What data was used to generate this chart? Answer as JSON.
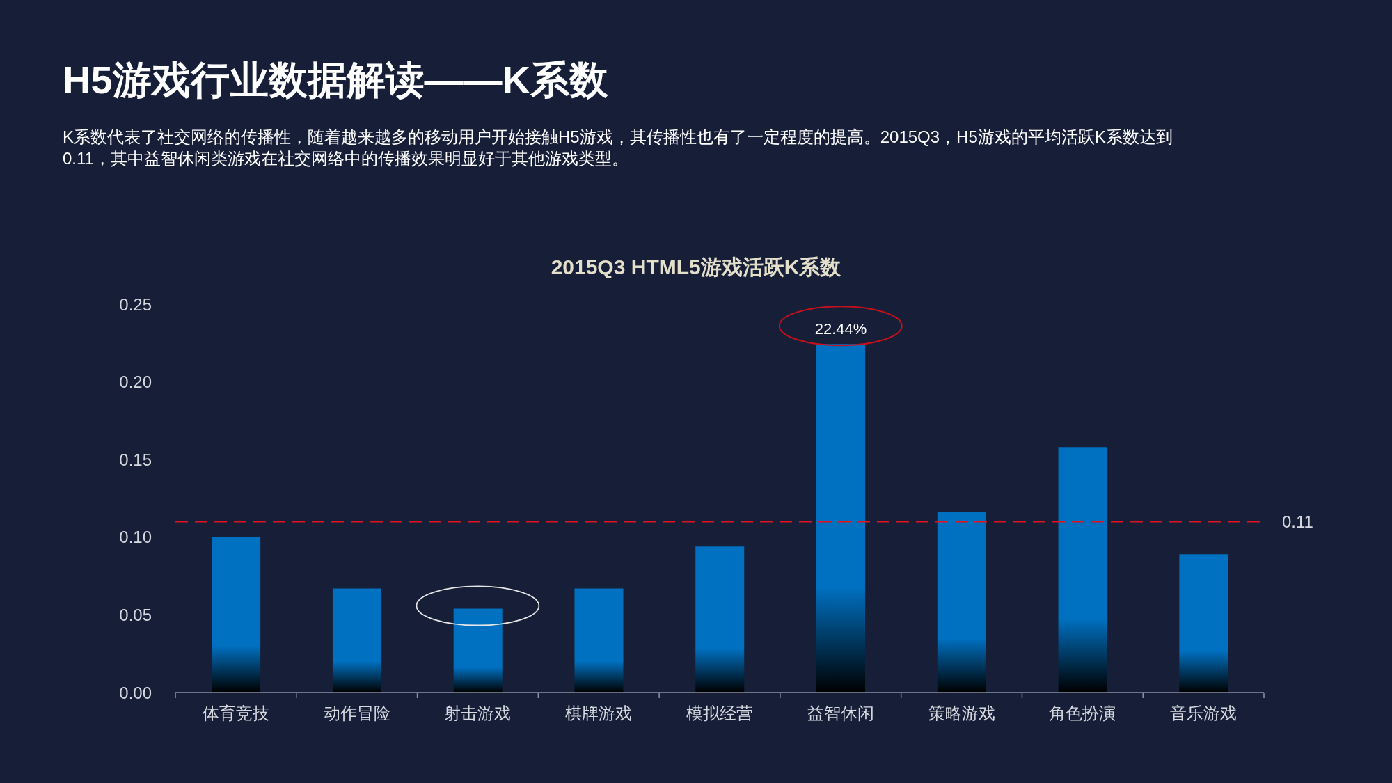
{
  "chart_data": {
    "type": "bar",
    "title": "H5游戏行业数据解读——K系数",
    "subtitle": "K系数代表了社交网络的传播性，随着越来越多的移动用户开始接触H5游戏，其传播性也有了一定程度的提高。2015Q3，H5游戏的平均活跃K系数达到0.11，其中益智休闲类游戏在社交网络中的传播效果明显好于其他游戏类型。",
    "annotations": [
      "2015Q3 HTML5游戏活跃K系数"
    ],
    "categories": [
      "体育竞技",
      "动作冒险",
      "射击游戏",
      "棋牌游戏",
      "模拟经营",
      "益智休闲",
      "策略游戏",
      "角色扮演",
      "音乐游戏"
    ],
    "values": [
      0.1,
      0.067,
      0.054,
      0.067,
      0.094,
      0.2244,
      0.116,
      0.158,
      0.089
    ],
    "value_labels": [
      null,
      null,
      null,
      null,
      null,
      "22.44%",
      null,
      null,
      null
    ],
    "color": "#0070c0",
    "ylim": [
      0,
      0.25
    ],
    "yticks": [
      {
        "value": 0,
        "label": "0.00"
      },
      0.05,
      {
        "value": 0.1,
        "label": "0.10"
      },
      0.15,
      {
        "value": 0.2,
        "label": "0.20"
      },
      0.25
    ],
    "ref_lines": [
      {
        "axis": "y",
        "value": 0.11,
        "label": "0.11",
        "color": "#e3121c",
        "line_style": "dashed"
      }
    ]
  }
}
